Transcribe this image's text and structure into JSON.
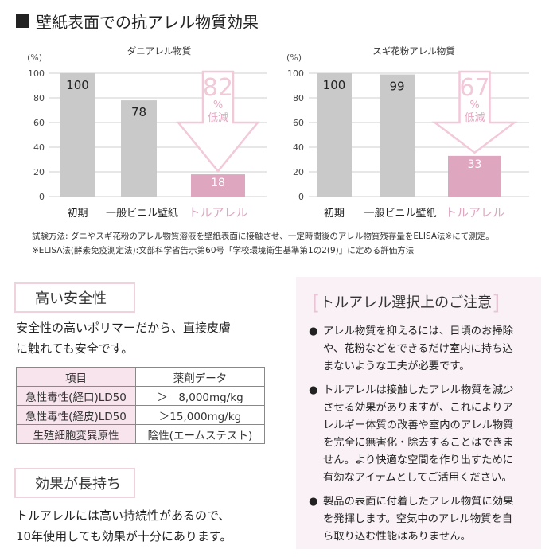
{
  "title": "壁紙表面での抗アレル物質効果",
  "chart_data": [
    {
      "type": "bar",
      "title": "ダニアレル物質",
      "ylabel": "(%)",
      "ylim": [
        0,
        100
      ],
      "yticks": [
        0,
        20,
        40,
        60,
        80,
        100
      ],
      "grid": true,
      "categories": [
        "初期",
        "一般ビニル壁紙",
        "トルアレル"
      ],
      "values": [
        100,
        78,
        18
      ],
      "annotation": {
        "value": "82",
        "unit": "%",
        "text": "低減"
      }
    },
    {
      "type": "bar",
      "title": "スギ花粉アレル物質",
      "ylabel": "(%)",
      "ylim": [
        0,
        100
      ],
      "yticks": [
        0,
        20,
        40,
        60,
        80,
        100
      ],
      "grid": true,
      "categories": [
        "初期",
        "一般ビニル壁紙",
        "トルアレル"
      ],
      "values": [
        100,
        99,
        33
      ],
      "annotation": {
        "value": "67",
        "unit": "%",
        "text": "低減"
      }
    }
  ],
  "colors": {
    "bar": "#c9c9c9",
    "highlight": "#dea6bf",
    "arrow": "#f2c9d9",
    "grid": "#cfcfcf"
  },
  "notes": [
    "試験方法: ダニやスギ花粉のアレル物質溶液を壁紙表面に接触させ、一定時間後のアレル物質残存量をELISA法※にて測定。",
    "※ELISA法(酵素免疫測定法):文部科学省告示第60号「学校環境衛生基準第1の2(9)」に定める評価方法"
  ],
  "safety": {
    "heading": "高い安全性",
    "lines": [
      "安全性の高いポリマーだから、直接皮膚",
      "に触れても安全です。"
    ],
    "table": {
      "headers": [
        "項目",
        "薬剤データ"
      ],
      "rows": [
        [
          "急性毒性(経口)LD50",
          "＞　8,000mg/kg"
        ],
        [
          "急性毒性(経皮)LD50",
          "＞15,000mg/kg"
        ],
        [
          "生殖細胞変異原性",
          "陰性(エームステスト)"
        ]
      ]
    }
  },
  "lasting": {
    "heading": "効果が長持ち",
    "lines": [
      "トルアレルには高い持続性があるので、",
      "10年使用しても効果が十分にあります。"
    ]
  },
  "cautions": {
    "title": "トルアレル選択上のご注意",
    "items": [
      [
        "アレル物質を抑えるには、日頃のお掃除",
        "や、花粉などをできるだけ室内に持ち込",
        "まないような工夫が必要です。"
      ],
      [
        "トルアレルは接触したアレル物質を減少",
        "させる効果がありますが、これによりア",
        "レルギー体質の改善や室内のアレル物質",
        "を完全に無害化・除去することはできま",
        "せん。より快適な空間を作り出すために",
        "有効なアイテムとしてご活用ください。"
      ],
      [
        "製品の表面に付着したアレル物質に効果",
        "を発揮します。空気中のアレル物質を自",
        "ら取り込む性能はありません。"
      ]
    ]
  }
}
